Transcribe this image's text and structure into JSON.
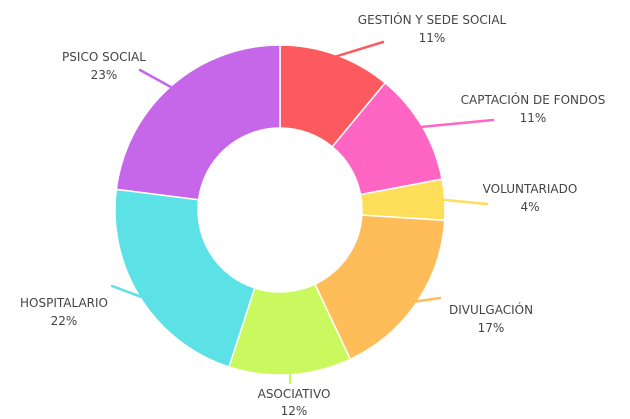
{
  "chart_data": {
    "type": "pie",
    "donut": true,
    "title": "",
    "legend": "none (labels beside slices)",
    "slices": [
      {
        "name": "GESTIÓN Y SEDE SOCIAL",
        "value": 11,
        "value_label": "11%",
        "color": "#fd5a5f"
      },
      {
        "name": "CAPTACIÓN DE FONDOS",
        "value": 11,
        "value_label": "11%",
        "color": "#ff66c4"
      },
      {
        "name": "VOLUNTARIADO",
        "value": 4,
        "value_label": "4%",
        "color": "#ffde59"
      },
      {
        "name": "DIVULGACIÓN",
        "value": 17,
        "value_label": "17%",
        "color": "#ffbd59"
      },
      {
        "name": "ASOCIATIVO",
        "value": 12,
        "value_label": "12%",
        "color": "#c9f95e"
      },
      {
        "name": "HOSPITALARIO",
        "value": 22,
        "value_label": "22%",
        "color": "#5ce1e6"
      },
      {
        "name": "PSICO SOCIAL",
        "value": 23,
        "value_label": "23%",
        "color": "#c666e8"
      }
    ]
  }
}
